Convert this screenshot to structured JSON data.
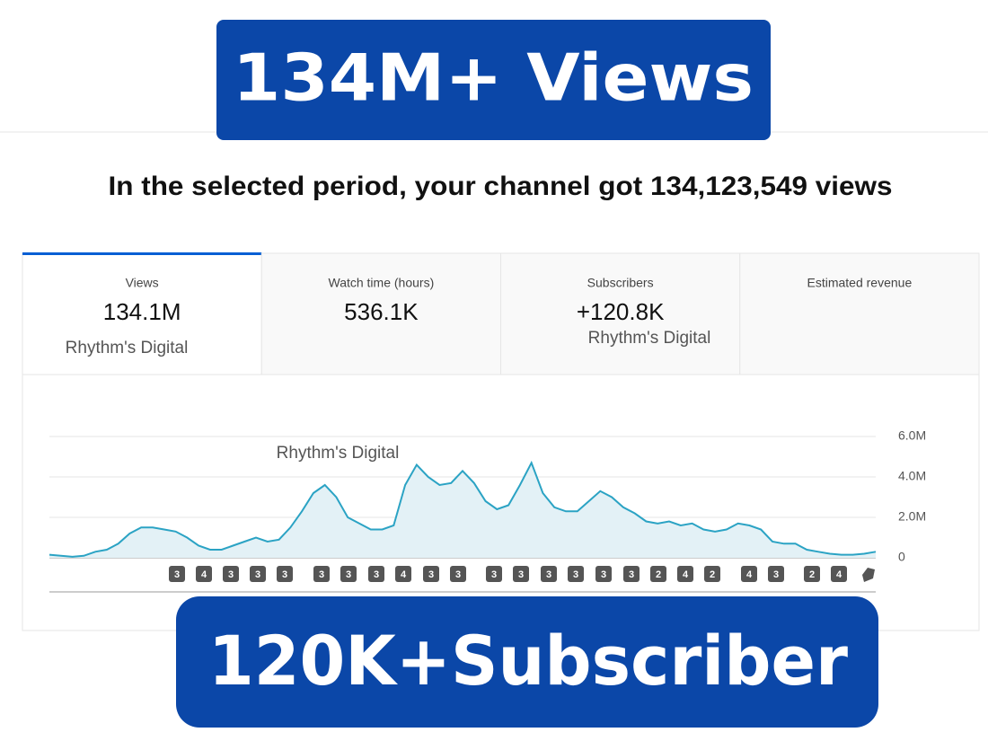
{
  "banner_top": "134M+ Views",
  "headline": "In the selected period, your channel got 134,123,549 views",
  "tabs": [
    {
      "label": "Views",
      "value": "134.1M",
      "watermark": "Rhythm's Digital"
    },
    {
      "label": "Watch time (hours)",
      "value": "536.1K"
    },
    {
      "label": "Subscribers",
      "value": "+120.8K",
      "watermark": "Rhythm's Digital"
    },
    {
      "label": "Estimated revenue"
    }
  ],
  "chart_data": {
    "type": "line",
    "color": "#2ba3c4",
    "fill": "#e3f1f6",
    "annotation": "Rhythm's Digital",
    "values": [
      150000,
      100000,
      50000,
      100000,
      300000,
      400000,
      700000,
      1200000,
      1500000,
      1500000,
      1400000,
      1300000,
      1000000,
      600000,
      400000,
      400000,
      600000,
      800000,
      1000000,
      800000,
      900000,
      1500000,
      2300000,
      3200000,
      3600000,
      3000000,
      2000000,
      1700000,
      1400000,
      1400000,
      1600000,
      3600000,
      4600000,
      4000000,
      3600000,
      3700000,
      4300000,
      3700000,
      2800000,
      2400000,
      2600000,
      3600000,
      4700000,
      3200000,
      2500000,
      2300000,
      2300000,
      2800000,
      3300000,
      3000000,
      2500000,
      2200000,
      1800000,
      1700000,
      1800000,
      1600000,
      1700000,
      1400000,
      1300000,
      1400000,
      1700000,
      1600000,
      1400000,
      800000,
      700000,
      700000,
      400000,
      300000,
      200000,
      150000,
      150000,
      200000,
      300000
    ],
    "ylim": [
      0,
      6000000
    ],
    "yticks": [
      0,
      {
        "value": 2000000,
        "label": "2.0M"
      },
      {
        "value": 4000000,
        "label": "4.0M"
      },
      {
        "value": 6000000,
        "label": "6.0M"
      }
    ],
    "grid": true
  },
  "badges": [
    3,
    4,
    3,
    3,
    3,
    3,
    3,
    3,
    4,
    3,
    3,
    3,
    3,
    3,
    3,
    3,
    3,
    2,
    4,
    2,
    4,
    3,
    2,
    4
  ],
  "banner_bottom": "120K+Subscriber"
}
